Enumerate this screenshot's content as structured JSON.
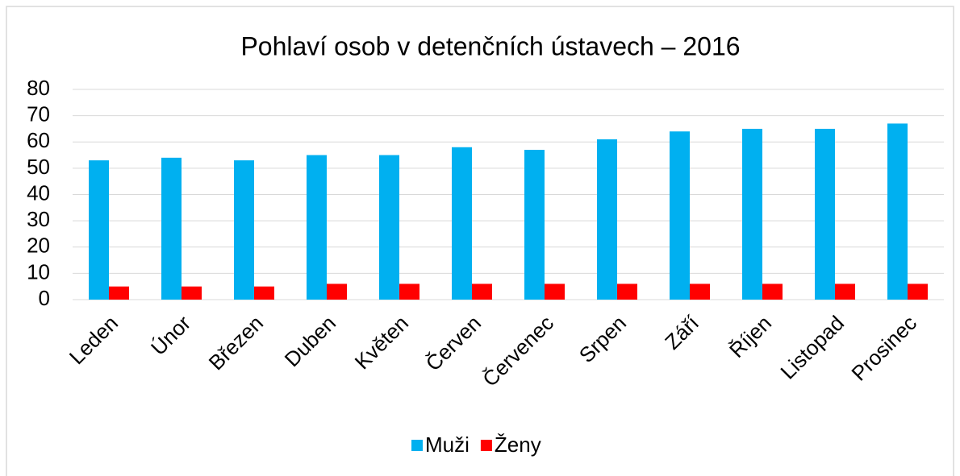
{
  "chart_data": {
    "type": "bar",
    "title": "Pohlaví osob v detenčních ústavech – 2016",
    "categories": [
      "Leden",
      "Únor",
      "Březen",
      "Duben",
      "Květen",
      "Červen",
      "Červenec",
      "Srpen",
      "Září",
      "Říjen",
      "Listopad",
      "Prosinec"
    ],
    "series": [
      {
        "name": "Muži",
        "color": "#00b0f0",
        "values": [
          53,
          54,
          53,
          55,
          55,
          58,
          57,
          61,
          64,
          65,
          65,
          67
        ]
      },
      {
        "name": "Ženy",
        "color": "#ff0000",
        "values": [
          5,
          5,
          5,
          6,
          6,
          6,
          6,
          6,
          6,
          6,
          6,
          6
        ]
      }
    ],
    "ylim": [
      0,
      80
    ],
    "yticks": [
      0,
      10,
      20,
      30,
      40,
      50,
      60,
      70,
      80
    ],
    "grid": true,
    "legend": "bottom"
  }
}
